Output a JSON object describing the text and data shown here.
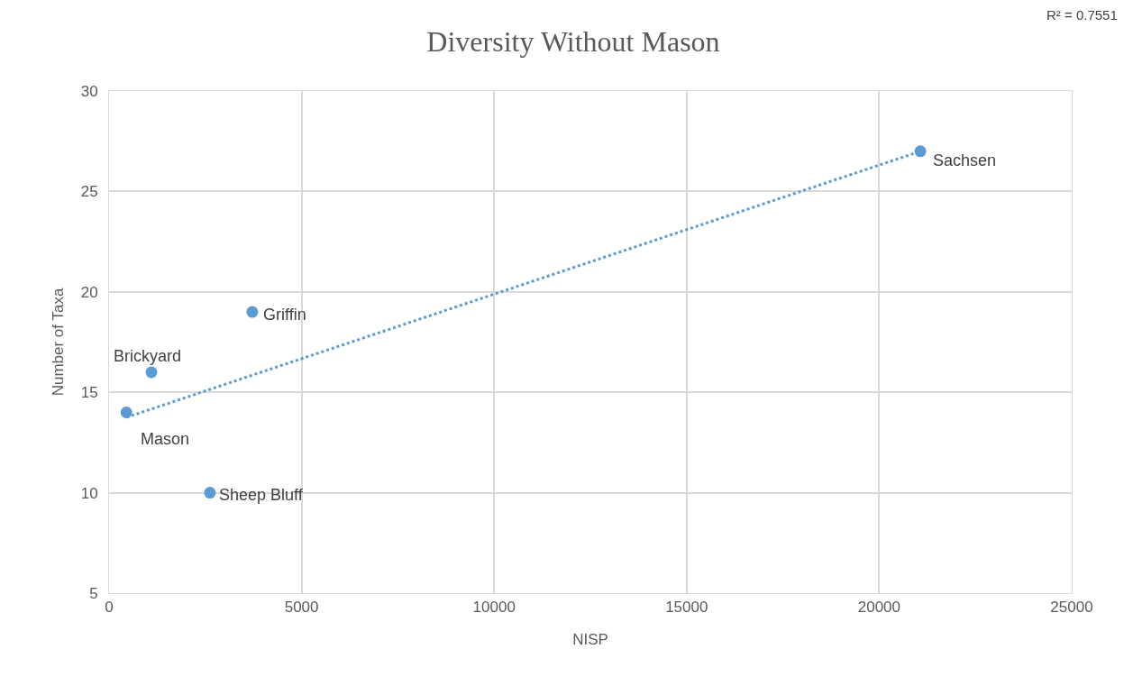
{
  "chart_data": {
    "type": "scatter",
    "title": "Diversity Without Mason",
    "xlabel": "NISP",
    "ylabel": "Number of Taxa",
    "series": [
      {
        "color": "#5b9bd5",
        "x": [
          450,
          1100,
          3720,
          2620,
          21070
        ],
        "values": [
          14,
          16,
          19,
          10,
          27
        ],
        "marker": "circle"
      },
      {
        "type": "line",
        "color": "#5b9bd5",
        "x": [
          450,
          21070
        ],
        "values": [
          13.75,
          27.0
        ],
        "line_style": "dotted",
        "marker": "none"
      }
    ],
    "annotations": [
      {
        "text": "Mason",
        "x": 450,
        "y": 14
      },
      {
        "text": "Brickyard",
        "x": 1100,
        "y": 16
      },
      {
        "text": "Griffin",
        "x": 3720,
        "y": 19
      },
      {
        "text": "Sheep Bluff",
        "x": 2620,
        "y": 10
      },
      {
        "text": "Sachsen",
        "x": 21070,
        "y": 27
      },
      "R² = 0.7551"
    ],
    "xlim": [
      0,
      25000
    ],
    "xticks": [
      0,
      5000,
      10000,
      15000,
      20000,
      25000
    ],
    "ylim": [
      5,
      30
    ],
    "yticks": [
      5,
      10,
      15,
      20,
      25,
      30
    ],
    "grid": true
  }
}
